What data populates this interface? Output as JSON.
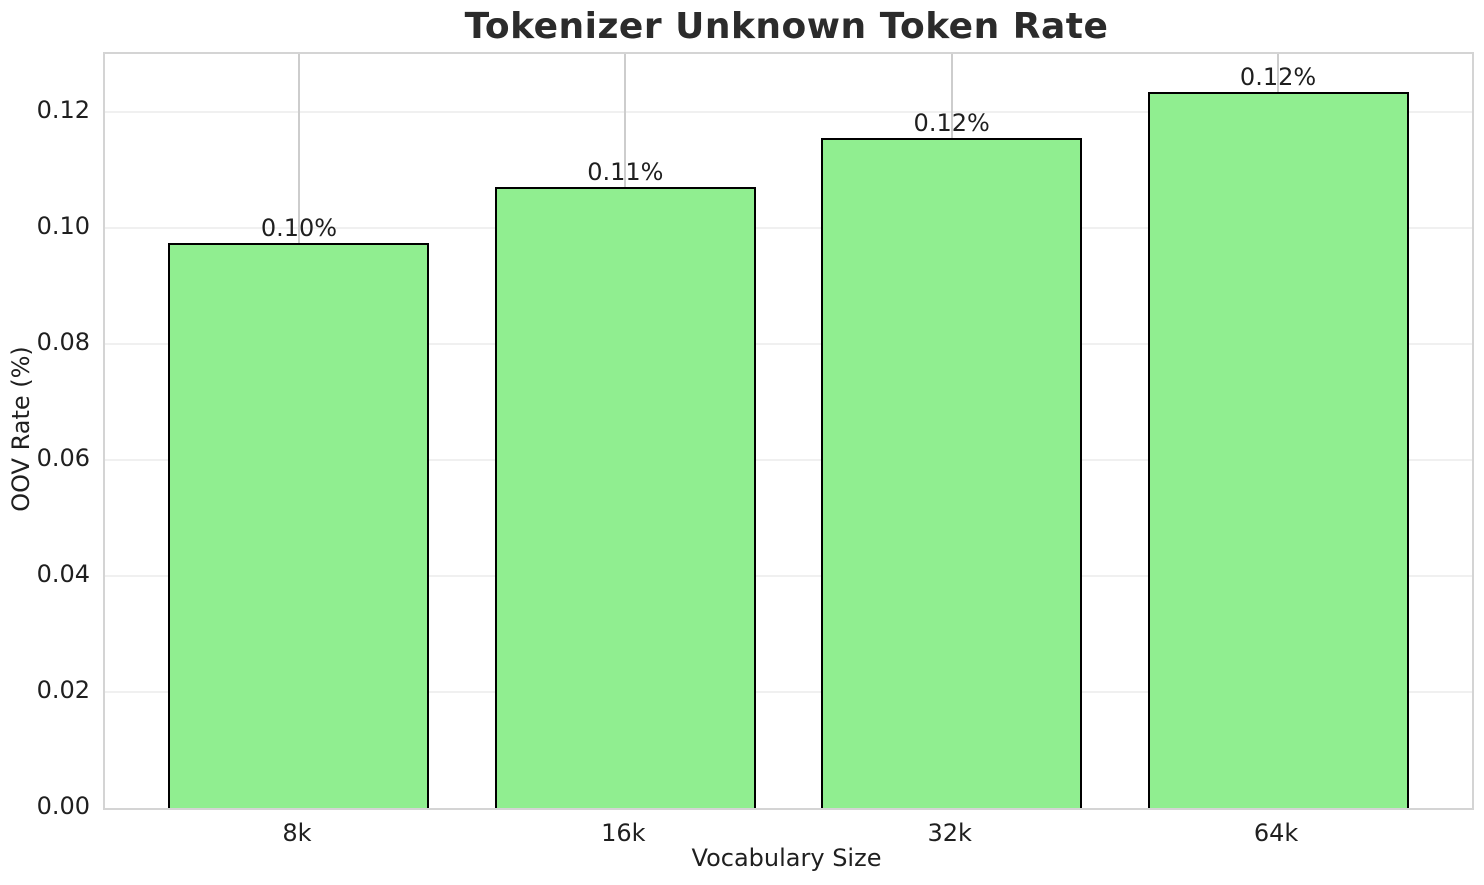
{
  "chart_data": {
    "type": "bar",
    "title": "Tokenizer Unknown Token Rate",
    "xlabel": "Vocabulary Size",
    "ylabel": "OOV Rate (%)",
    "categories": [
      "8k",
      "16k",
      "32k",
      "64k"
    ],
    "values": [
      0.0975,
      0.107,
      0.1155,
      0.1235
    ],
    "bar_labels": [
      "0.10%",
      "0.11%",
      "0.12%",
      "0.12%"
    ],
    "ylim": [
      0,
      0.13
    ],
    "yticks": [
      0.0,
      0.02,
      0.04,
      0.06,
      0.08,
      0.1,
      0.12
    ],
    "ytick_labels": [
      "0.00",
      "0.02",
      "0.04",
      "0.06",
      "0.08",
      "0.10",
      "0.12"
    ],
    "grid": true,
    "legend": "none",
    "colors": {
      "bar_fill": "#90EE90",
      "bar_edge": "#000000",
      "grid_horizontal": "#f0f0f0",
      "grid_vertical": "#cdcdcd",
      "spine": "#d4d4d4",
      "text": "#1f1f1f",
      "title_text": "#2b2b2b",
      "background": "#ffffff"
    }
  }
}
